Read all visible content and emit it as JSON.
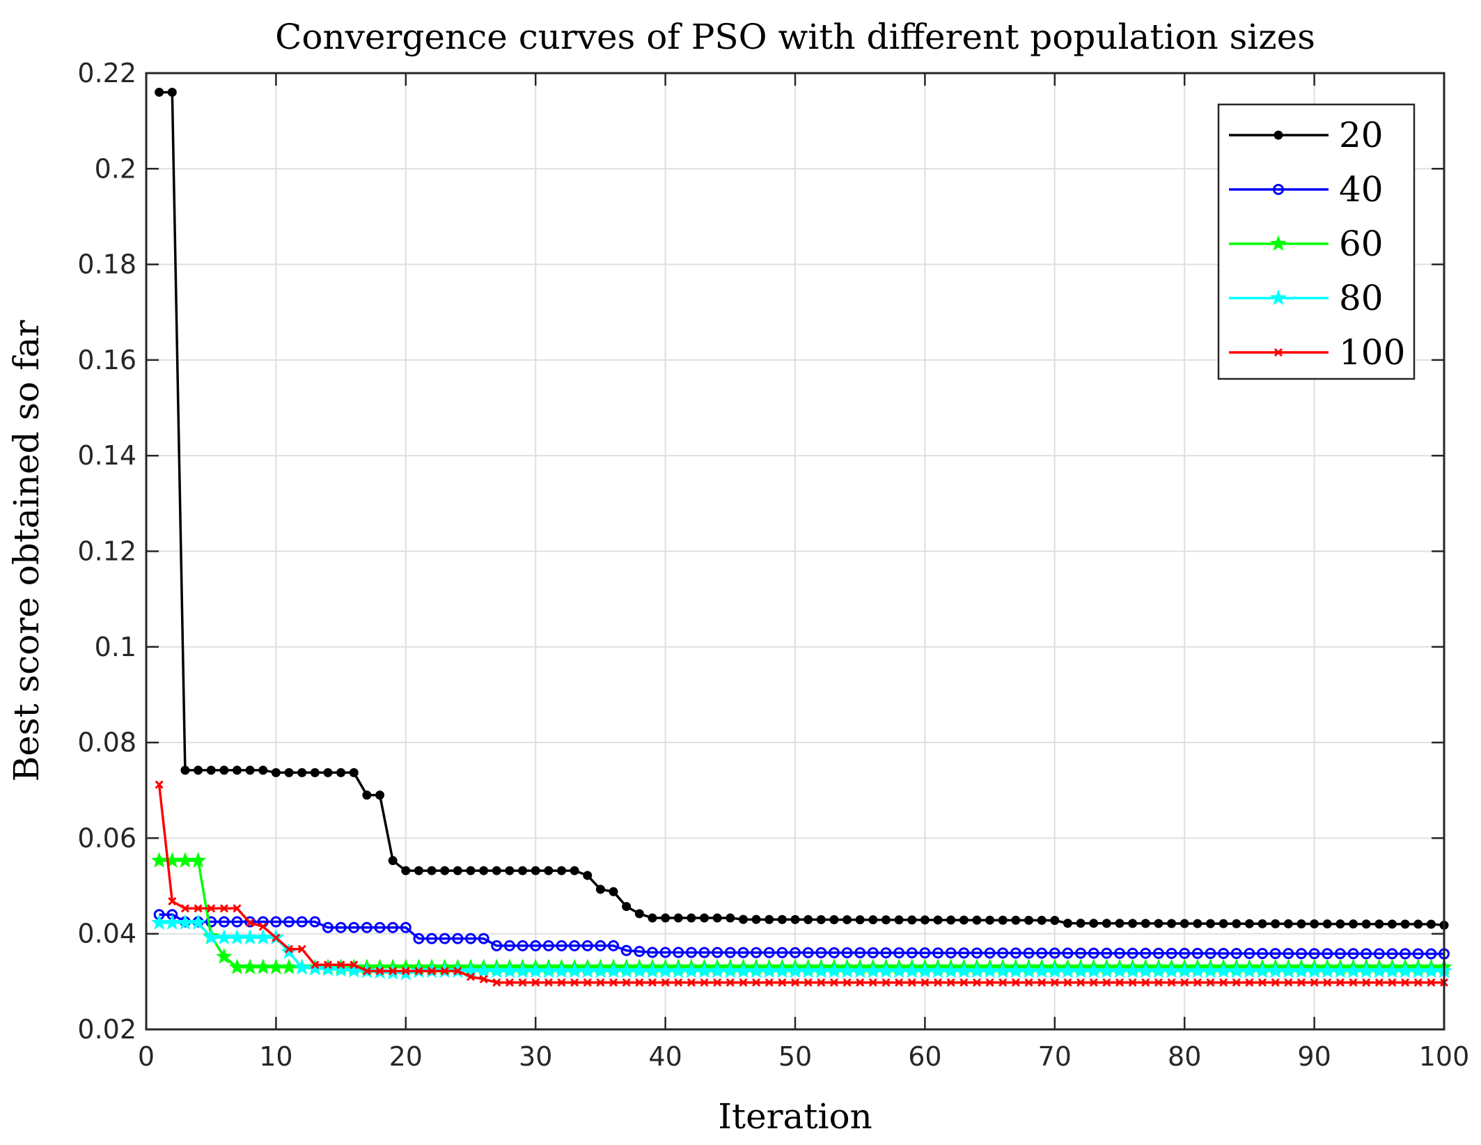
{
  "chart_data": {
    "type": "line",
    "title": "Convergence curves of PSO with different population sizes",
    "xlabel": "Iteration",
    "ylabel": "Best score obtained so far",
    "xlim": [
      0,
      100
    ],
    "ylim": [
      0.02,
      0.22
    ],
    "xticks": [
      "0",
      "10",
      "20",
      "30",
      "40",
      "50",
      "60",
      "70",
      "80",
      "90",
      "100"
    ],
    "yticks": [
      "0.02",
      "0.04",
      "0.06",
      "0.08",
      "0.1",
      "0.12",
      "0.14",
      "0.16",
      "0.18",
      "0.2",
      "0.22"
    ],
    "grid": true,
    "legend_position": "top-right",
    "series": [
      {
        "name": "20",
        "color": "#000000",
        "marker": "dot",
        "breakpoints": [
          [
            1,
            0.216
          ],
          [
            2,
            0.216
          ],
          [
            3,
            0.0742
          ],
          [
            9,
            0.0742
          ],
          [
            10,
            0.0737
          ],
          [
            16,
            0.0737
          ],
          [
            17,
            0.069
          ],
          [
            18,
            0.069
          ],
          [
            19,
            0.0553
          ],
          [
            20,
            0.0532
          ],
          [
            33,
            0.0532
          ],
          [
            34,
            0.0522
          ],
          [
            35,
            0.0493
          ],
          [
            36,
            0.0488
          ],
          [
            37,
            0.0457
          ],
          [
            38,
            0.0442
          ],
          [
            39,
            0.0433
          ],
          [
            45,
            0.0433
          ],
          [
            46,
            0.043
          ],
          [
            70,
            0.0428
          ],
          [
            71,
            0.0422
          ],
          [
            99,
            0.042
          ],
          [
            100,
            0.0418
          ]
        ]
      },
      {
        "name": "40",
        "color": "#0000ff",
        "marker": "circle",
        "breakpoints": [
          [
            1,
            0.044
          ],
          [
            2,
            0.044
          ],
          [
            3,
            0.0425
          ],
          [
            13,
            0.0425
          ],
          [
            14,
            0.0413
          ],
          [
            20,
            0.0413
          ],
          [
            21,
            0.039
          ],
          [
            26,
            0.039
          ],
          [
            27,
            0.0375
          ],
          [
            36,
            0.0375
          ],
          [
            37,
            0.0365
          ],
          [
            39,
            0.0361
          ],
          [
            100,
            0.0358
          ]
        ]
      },
      {
        "name": "60",
        "color": "#00ff00",
        "marker": "star",
        "breakpoints": [
          [
            1,
            0.0553
          ],
          [
            4,
            0.0553
          ],
          [
            5,
            0.0395
          ],
          [
            6,
            0.0352
          ],
          [
            7,
            0.033
          ],
          [
            100,
            0.033
          ]
        ]
      },
      {
        "name": "80",
        "color": "#00ffff",
        "marker": "star",
        "breakpoints": [
          [
            1,
            0.0423
          ],
          [
            4,
            0.0423
          ],
          [
            5,
            0.0392
          ],
          [
            10,
            0.0392
          ],
          [
            11,
            0.0362
          ],
          [
            12,
            0.0329
          ],
          [
            20,
            0.0317
          ],
          [
            21,
            0.0322
          ],
          [
            100,
            0.0322
          ]
        ]
      },
      {
        "name": "100",
        "color": "#ff0000",
        "marker": "x",
        "breakpoints": [
          [
            1,
            0.0712
          ],
          [
            2,
            0.0468
          ],
          [
            3,
            0.0453
          ],
          [
            7,
            0.0453
          ],
          [
            8,
            0.0423
          ],
          [
            9,
            0.0415
          ],
          [
            11,
            0.0368
          ],
          [
            12,
            0.0368
          ],
          [
            13,
            0.0335
          ],
          [
            16,
            0.0335
          ],
          [
            17,
            0.0322
          ],
          [
            24,
            0.0322
          ],
          [
            25,
            0.031
          ],
          [
            26,
            0.0305
          ],
          [
            27,
            0.0298
          ],
          [
            100,
            0.0298
          ]
        ]
      }
    ]
  }
}
